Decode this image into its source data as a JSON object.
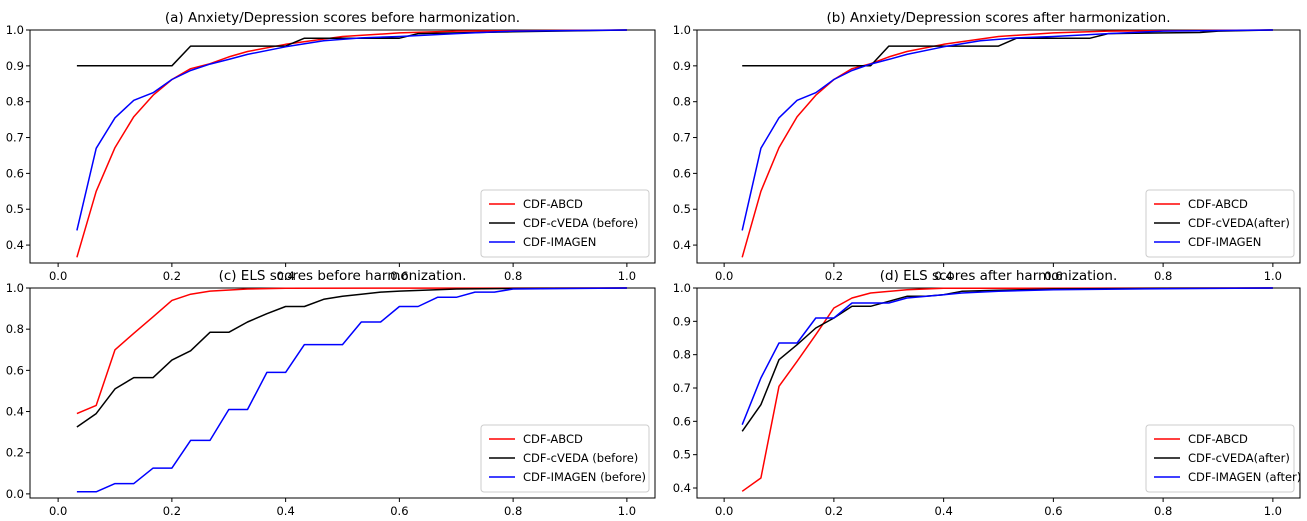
{
  "chart_data": [
    {
      "type": "line",
      "title": "(a) Anxiety/Depression scores before harmonization.",
      "xlabel": "",
      "ylabel": "",
      "xlim": [
        0.0,
        1.0
      ],
      "ylim": [
        0.35,
        1.0
      ],
      "xticks": [
        "0.0",
        "0.2",
        "0.4",
        "0.6",
        "0.8",
        "1.0"
      ],
      "yticks": [
        "0.4",
        "0.5",
        "0.6",
        "0.7",
        "0.8",
        "0.9",
        "1.0"
      ],
      "legend_position": "lower-right",
      "grid": false,
      "series": [
        {
          "name": "CDF-ABCD",
          "color": "#ff0000",
          "points": [
            [
              0.033,
              0.366
            ],
            [
              0.067,
              0.55
            ],
            [
              0.1,
              0.672
            ],
            [
              0.133,
              0.758
            ],
            [
              0.167,
              0.818
            ],
            [
              0.2,
              0.862
            ],
            [
              0.233,
              0.892
            ],
            [
              0.267,
              0.906
            ],
            [
              0.3,
              0.925
            ],
            [
              0.333,
              0.94
            ],
            [
              0.4,
              0.96
            ],
            [
              0.5,
              0.982
            ],
            [
              0.6,
              0.992
            ],
            [
              0.7,
              0.997
            ],
            [
              0.8,
              0.998
            ],
            [
              0.9,
              0.999
            ],
            [
              1.0,
              1.0
            ]
          ]
        },
        {
          "name": "CDF-cVEDA (before)",
          "color": "#000000",
          "points": [
            [
              0.033,
              0.9
            ],
            [
              0.2,
              0.9
            ],
            [
              0.233,
              0.955
            ],
            [
              0.4,
              0.955
            ],
            [
              0.433,
              0.977
            ],
            [
              0.6,
              0.977
            ],
            [
              0.633,
              0.99
            ],
            [
              0.8,
              0.995
            ],
            [
              1.0,
              1.0
            ]
          ]
        },
        {
          "name": "CDF-IMAGEN",
          "color": "#0000ff",
          "points": [
            [
              0.033,
              0.441
            ],
            [
              0.067,
              0.67
            ],
            [
              0.1,
              0.755
            ],
            [
              0.133,
              0.804
            ],
            [
              0.167,
              0.825
            ],
            [
              0.2,
              0.862
            ],
            [
              0.233,
              0.887
            ],
            [
              0.267,
              0.905
            ],
            [
              0.3,
              0.918
            ],
            [
              0.333,
              0.932
            ],
            [
              0.4,
              0.953
            ],
            [
              0.467,
              0.97
            ],
            [
              0.533,
              0.978
            ],
            [
              0.6,
              0.982
            ],
            [
              0.7,
              0.99
            ],
            [
              0.8,
              0.997
            ],
            [
              1.0,
              1.0
            ]
          ]
        }
      ]
    },
    {
      "type": "line",
      "title": "(b) Anxiety/Depression scores after harmonization.",
      "xlabel": "",
      "ylabel": "",
      "xlim": [
        0.0,
        1.0
      ],
      "ylim": [
        0.35,
        1.0
      ],
      "xticks": [
        "0.0",
        "0.2",
        "0.4",
        "0.6",
        "0.8",
        "1.0"
      ],
      "yticks": [
        "0.4",
        "0.5",
        "0.6",
        "0.7",
        "0.8",
        "0.9",
        "1.0"
      ],
      "legend_position": "lower-right",
      "grid": false,
      "series": [
        {
          "name": "CDF-ABCD",
          "color": "#ff0000",
          "points": [
            [
              0.033,
              0.366
            ],
            [
              0.067,
              0.55
            ],
            [
              0.1,
              0.672
            ],
            [
              0.133,
              0.758
            ],
            [
              0.167,
              0.818
            ],
            [
              0.2,
              0.862
            ],
            [
              0.233,
              0.892
            ],
            [
              0.267,
              0.906
            ],
            [
              0.3,
              0.925
            ],
            [
              0.333,
              0.94
            ],
            [
              0.4,
              0.96
            ],
            [
              0.5,
              0.982
            ],
            [
              0.6,
              0.992
            ],
            [
              0.7,
              0.997
            ],
            [
              0.8,
              0.998
            ],
            [
              0.9,
              0.999
            ],
            [
              1.0,
              1.0
            ]
          ]
        },
        {
          "name": "CDF-cVEDA(after)",
          "color": "#000000",
          "points": [
            [
              0.033,
              0.9
            ],
            [
              0.267,
              0.9
            ],
            [
              0.3,
              0.955
            ],
            [
              0.5,
              0.955
            ],
            [
              0.533,
              0.977
            ],
            [
              0.667,
              0.977
            ],
            [
              0.7,
              0.99
            ],
            [
              0.867,
              0.993
            ],
            [
              0.9,
              0.997
            ],
            [
              1.0,
              1.0
            ]
          ]
        },
        {
          "name": "CDF-IMAGEN",
          "color": "#0000ff",
          "points": [
            [
              0.033,
              0.441
            ],
            [
              0.067,
              0.67
            ],
            [
              0.1,
              0.755
            ],
            [
              0.133,
              0.804
            ],
            [
              0.167,
              0.825
            ],
            [
              0.2,
              0.862
            ],
            [
              0.233,
              0.887
            ],
            [
              0.267,
              0.905
            ],
            [
              0.3,
              0.918
            ],
            [
              0.333,
              0.932
            ],
            [
              0.4,
              0.953
            ],
            [
              0.467,
              0.97
            ],
            [
              0.533,
              0.978
            ],
            [
              0.6,
              0.982
            ],
            [
              0.7,
              0.99
            ],
            [
              0.8,
              0.997
            ],
            [
              1.0,
              1.0
            ]
          ]
        }
      ]
    },
    {
      "type": "line",
      "title": "(c) ELS scores before harmonization.",
      "xlabel": "",
      "ylabel": "",
      "xlim": [
        0.0,
        1.0
      ],
      "ylim": [
        -0.02,
        1.0
      ],
      "xticks": [
        "0.0",
        "0.2",
        "0.4",
        "0.6",
        "0.8",
        "1.0"
      ],
      "yticks": [
        "0.0",
        "0.2",
        "0.4",
        "0.6",
        "0.8",
        "1.0"
      ],
      "legend_position": "lower-right",
      "grid": false,
      "series": [
        {
          "name": "CDF-ABCD",
          "color": "#ff0000",
          "points": [
            [
              0.033,
              0.39
            ],
            [
              0.067,
              0.43
            ],
            [
              0.1,
              0.7
            ],
            [
              0.133,
              0.78
            ],
            [
              0.167,
              0.86
            ],
            [
              0.2,
              0.94
            ],
            [
              0.233,
              0.97
            ],
            [
              0.267,
              0.985
            ],
            [
              0.333,
              0.995
            ],
            [
              0.4,
              0.999
            ],
            [
              1.0,
              1.0
            ]
          ]
        },
        {
          "name": "CDF-cVEDA (before)",
          "color": "#000000",
          "points": [
            [
              0.033,
              0.325
            ],
            [
              0.067,
              0.39
            ],
            [
              0.1,
              0.51
            ],
            [
              0.133,
              0.565
            ],
            [
              0.167,
              0.565
            ],
            [
              0.2,
              0.65
            ],
            [
              0.233,
              0.695
            ],
            [
              0.267,
              0.785
            ],
            [
              0.3,
              0.785
            ],
            [
              0.333,
              0.835
            ],
            [
              0.367,
              0.875
            ],
            [
              0.4,
              0.91
            ],
            [
              0.433,
              0.91
            ],
            [
              0.467,
              0.945
            ],
            [
              0.5,
              0.96
            ],
            [
              0.533,
              0.97
            ],
            [
              0.567,
              0.98
            ],
            [
              0.6,
              0.985
            ],
            [
              0.7,
              0.995
            ],
            [
              0.8,
              0.998
            ],
            [
              1.0,
              1.0
            ]
          ]
        },
        {
          "name": "CDF-IMAGEN (before)",
          "color": "#0000ff",
          "points": [
            [
              0.033,
              0.01
            ],
            [
              0.067,
              0.01
            ],
            [
              0.1,
              0.05
            ],
            [
              0.133,
              0.05
            ],
            [
              0.167,
              0.125
            ],
            [
              0.2,
              0.125
            ],
            [
              0.233,
              0.26
            ],
            [
              0.267,
              0.26
            ],
            [
              0.3,
              0.41
            ],
            [
              0.333,
              0.41
            ],
            [
              0.367,
              0.59
            ],
            [
              0.4,
              0.59
            ],
            [
              0.433,
              0.725
            ],
            [
              0.467,
              0.725
            ],
            [
              0.5,
              0.725
            ],
            [
              0.533,
              0.835
            ],
            [
              0.567,
              0.835
            ],
            [
              0.6,
              0.91
            ],
            [
              0.633,
              0.91
            ],
            [
              0.667,
              0.955
            ],
            [
              0.7,
              0.955
            ],
            [
              0.733,
              0.98
            ],
            [
              0.767,
              0.98
            ],
            [
              0.8,
              0.995
            ],
            [
              1.0,
              1.0
            ]
          ]
        }
      ]
    },
    {
      "type": "line",
      "title": "(d) ELS scores after harmonization.",
      "xlabel": "",
      "ylabel": "",
      "xlim": [
        0.0,
        1.0
      ],
      "ylim": [
        0.37,
        1.0
      ],
      "xticks": [
        "0.0",
        "0.2",
        "0.4",
        "0.6",
        "0.8",
        "1.0"
      ],
      "yticks": [
        "0.4",
        "0.5",
        "0.6",
        "0.7",
        "0.8",
        "0.9",
        "1.0"
      ],
      "legend_position": "lower-right",
      "grid": false,
      "series": [
        {
          "name": "CDF-ABCD",
          "color": "#ff0000",
          "points": [
            [
              0.033,
              0.39
            ],
            [
              0.067,
              0.43
            ],
            [
              0.1,
              0.705
            ],
            [
              0.133,
              0.78
            ],
            [
              0.167,
              0.86
            ],
            [
              0.2,
              0.94
            ],
            [
              0.233,
              0.97
            ],
            [
              0.267,
              0.985
            ],
            [
              0.333,
              0.995
            ],
            [
              0.4,
              0.999
            ],
            [
              1.0,
              1.0
            ]
          ]
        },
        {
          "name": "CDF-cVEDA(after)",
          "color": "#000000",
          "points": [
            [
              0.033,
              0.57
            ],
            [
              0.067,
              0.65
            ],
            [
              0.1,
              0.785
            ],
            [
              0.133,
              0.83
            ],
            [
              0.167,
              0.88
            ],
            [
              0.2,
              0.91
            ],
            [
              0.233,
              0.945
            ],
            [
              0.267,
              0.945
            ],
            [
              0.3,
              0.96
            ],
            [
              0.333,
              0.975
            ],
            [
              0.367,
              0.975
            ],
            [
              0.4,
              0.98
            ],
            [
              0.433,
              0.99
            ],
            [
              0.5,
              0.993
            ],
            [
              0.6,
              0.997
            ],
            [
              0.8,
              0.999
            ],
            [
              1.0,
              1.0
            ]
          ]
        },
        {
          "name": "CDF-IMAGEN (after)",
          "color": "#0000ff",
          "points": [
            [
              0.033,
              0.59
            ],
            [
              0.067,
              0.73
            ],
            [
              0.1,
              0.835
            ],
            [
              0.133,
              0.835
            ],
            [
              0.167,
              0.91
            ],
            [
              0.2,
              0.91
            ],
            [
              0.233,
              0.955
            ],
            [
              0.267,
              0.955
            ],
            [
              0.3,
              0.955
            ],
            [
              0.333,
              0.97
            ],
            [
              0.4,
              0.98
            ],
            [
              0.433,
              0.985
            ],
            [
              0.5,
              0.99
            ],
            [
              0.6,
              0.995
            ],
            [
              0.8,
              0.998
            ],
            [
              1.0,
              1.0
            ]
          ]
        }
      ]
    }
  ]
}
